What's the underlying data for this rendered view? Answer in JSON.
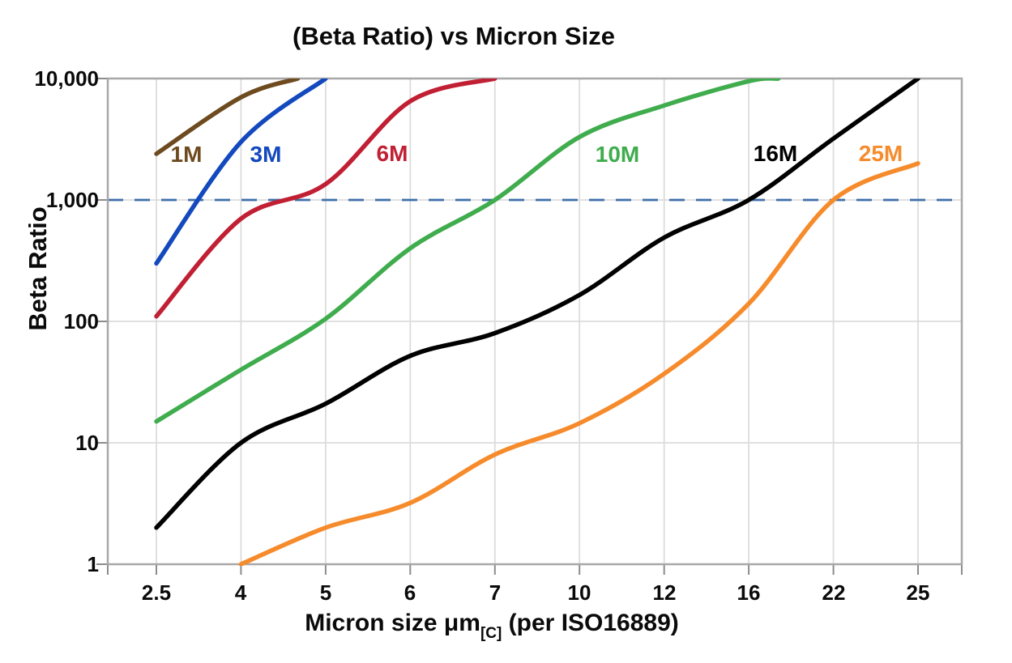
{
  "chart_data": {
    "type": "line",
    "title": "(Beta Ratio) vs Micron Size",
    "ylabel": "Beta Ratio",
    "xlabel_main": "Micron size μm",
    "xlabel_sub": "[C]",
    "xlabel_tail": " (per ISO16889)",
    "x_scale": "categorical",
    "y_scale": "log",
    "ylim": [
      1,
      10000
    ],
    "grid": true,
    "categories": [
      "2.5",
      "4",
      "5",
      "6",
      "7",
      "10",
      "12",
      "16",
      "22",
      "25"
    ],
    "x_ticklabels": [
      "2.5",
      "4",
      "5",
      "6",
      "7",
      "10",
      "12",
      "16",
      "22",
      "25"
    ],
    "y_ticklabels": [
      "10,000",
      "1,000",
      "100",
      "10",
      "1"
    ],
    "y_tick_values": [
      10000,
      1000,
      100,
      10,
      1
    ],
    "reference_line": {
      "value": 1000,
      "style": "dashed",
      "color": "#3E6FA8"
    },
    "gridline_color": "#DCDCDC",
    "border_color": "#A8A8A8",
    "tick_color": "#8C8C8C",
    "series": [
      {
        "name": "1M",
        "color": "#6E4A1F",
        "values": [
          2400,
          7000,
          null,
          null,
          null,
          null,
          null,
          null,
          null,
          null
        ],
        "note": "reaches 10,000 at ~4.7 μm",
        "render_points": [
          [
            0,
            2400
          ],
          [
            1,
            7000
          ],
          [
            1.67,
            10000
          ]
        ]
      },
      {
        "name": "3M",
        "color": "#1449BE",
        "values": [
          300,
          3000,
          10000,
          null,
          null,
          null,
          null,
          null,
          null,
          null
        ],
        "note": "reaches 10,000 at ~5 μm",
        "render_points": [
          [
            0,
            300
          ],
          [
            1,
            3000
          ],
          [
            2,
            10000
          ]
        ]
      },
      {
        "name": "6M",
        "color": "#C11F33",
        "values": [
          110,
          700,
          1350,
          6500,
          10000,
          null,
          null,
          null,
          null,
          null
        ],
        "note": "crosses 1,000 at ~4.6 μm, reaches 10,000 at ~7 μm",
        "render_points": [
          [
            0,
            110
          ],
          [
            1,
            700
          ],
          [
            2,
            1350
          ],
          [
            3,
            6500
          ],
          [
            4,
            10000
          ]
        ]
      },
      {
        "name": "10M",
        "color": "#3FAC4D",
        "values": [
          15,
          40,
          105,
          400,
          1000,
          3300,
          6000,
          9500,
          null,
          null
        ],
        "note": "crosses 1,000 at ~7 μm, reaches 10,000 just past 16 μm",
        "render_points": [
          [
            0,
            15
          ],
          [
            1,
            40
          ],
          [
            2,
            105
          ],
          [
            3,
            400
          ],
          [
            4,
            1000
          ],
          [
            5,
            3300
          ],
          [
            6,
            6000
          ],
          [
            7,
            9500
          ],
          [
            7.35,
            10000
          ]
        ]
      },
      {
        "name": "16M",
        "color": "#000000",
        "values": [
          2,
          10,
          21,
          52,
          80,
          165,
          490,
          1000,
          3200,
          10000
        ],
        "note": "crosses 1,000 at 16 μm, reaches 10,000 at 25 μm",
        "render_points": [
          [
            0,
            2
          ],
          [
            1,
            10
          ],
          [
            2,
            21
          ],
          [
            3,
            52
          ],
          [
            4,
            80
          ],
          [
            5,
            165
          ],
          [
            6,
            490
          ],
          [
            7,
            1000
          ],
          [
            8,
            3200
          ],
          [
            9,
            10000
          ]
        ]
      },
      {
        "name": "25M",
        "color": "#F68B2C",
        "values": [
          null,
          1,
          2,
          3.2,
          8,
          14.5,
          37,
          140,
          1000,
          2000
        ],
        "note": "starts at β=1 at 4 μm, crosses 1,000 at 22 μm",
        "render_points": [
          [
            1,
            1
          ],
          [
            2,
            2
          ],
          [
            3,
            3.2
          ],
          [
            4,
            8
          ],
          [
            5,
            14.5
          ],
          [
            6,
            37
          ],
          [
            7,
            140
          ],
          [
            8,
            1000
          ],
          [
            9,
            2000
          ]
        ]
      }
    ]
  }
}
